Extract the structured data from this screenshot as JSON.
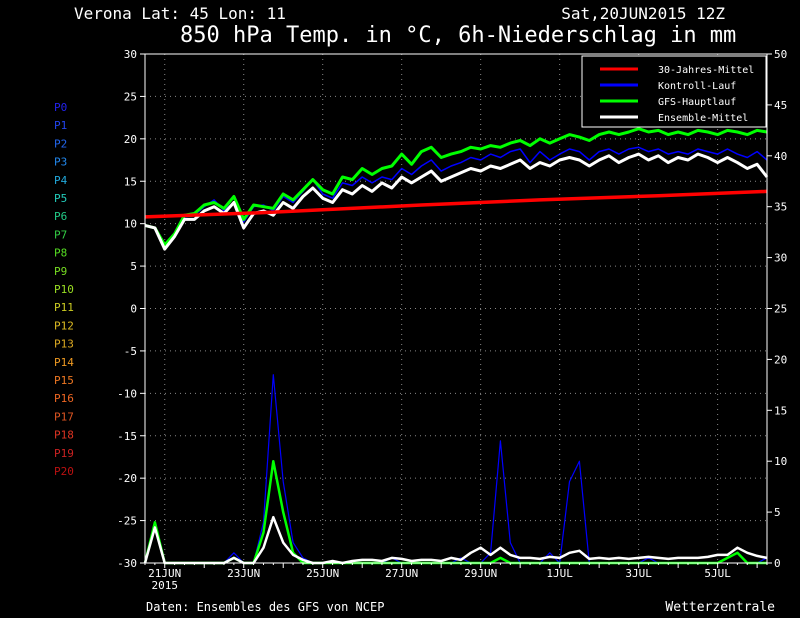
{
  "header": {
    "location": "Verona   Lat: 45 Lon: 11",
    "run": "Sat,20JUN2015 12Z",
    "title": "850 hPa Temp. in °C, 6h-Niederschlag in mm"
  },
  "footer": {
    "source": "Daten: Ensembles des GFS von NCEP",
    "brand": "Wetterzentrale"
  },
  "legend": {
    "items": [
      {
        "label": "30-Jahres-Mittel",
        "color": "#ff0000"
      },
      {
        "label": "Kontroll-Lauf",
        "color": "#0000ff"
      },
      {
        "label": "GFS-Hauptlauf",
        "color": "#00ff00"
      },
      {
        "label": "Ensemble-Mittel",
        "color": "#ffffff"
      }
    ]
  },
  "members": [
    {
      "label": "P0",
      "color": "#2222ee"
    },
    {
      "label": "P1",
      "color": "#2244ee"
    },
    {
      "label": "P2",
      "color": "#2266ee"
    },
    {
      "label": "P3",
      "color": "#2288ee"
    },
    {
      "label": "P4",
      "color": "#22aadd"
    },
    {
      "label": "P5",
      "color": "#22ccbb"
    },
    {
      "label": "P6",
      "color": "#22cc88"
    },
    {
      "label": "P7",
      "color": "#33cc44"
    },
    {
      "label": "P8",
      "color": "#55dd22"
    },
    {
      "label": "P9",
      "color": "#77dd22"
    },
    {
      "label": "P10",
      "color": "#99dd22"
    },
    {
      "label": "P11",
      "color": "#cccc22"
    },
    {
      "label": "P12",
      "color": "#ddbb22"
    },
    {
      "label": "P13",
      "color": "#ddaa22"
    },
    {
      "label": "P14",
      "color": "#ee9922"
    },
    {
      "label": "P15",
      "color": "#ee7722"
    },
    {
      "label": "P16",
      "color": "#ee6622"
    },
    {
      "label": "P17",
      "color": "#dd5522"
    },
    {
      "label": "P18",
      "color": "#dd3322"
    },
    {
      "label": "P19",
      "color": "#cc2222"
    },
    {
      "label": "P20",
      "color": "#bb1111"
    }
  ],
  "chart_data": {
    "type": "line",
    "grid": true,
    "legend_position": "top-right",
    "x_ticks": [
      {
        "day": 0.5,
        "label": "21JUN",
        "sub": "2015"
      },
      {
        "day": 2.5,
        "label": "23JUN"
      },
      {
        "day": 4.5,
        "label": "25JUN"
      },
      {
        "day": 6.5,
        "label": "27JUN"
      },
      {
        "day": 8.5,
        "label": "29JUN"
      },
      {
        "day": 10.5,
        "label": "1JUL"
      },
      {
        "day": 12.5,
        "label": "3JUL"
      },
      {
        "day": 14.5,
        "label": "5JUL"
      }
    ],
    "xlim": [
      0,
      15.75
    ],
    "y_left": {
      "lim": [
        -30,
        30
      ],
      "ticks": [
        30,
        25,
        20,
        15,
        10,
        5,
        0,
        -5,
        -10,
        -15,
        -20,
        -25,
        -30
      ]
    },
    "y_right": {
      "lim": [
        0,
        50
      ],
      "ticks": [
        50,
        45,
        40,
        35,
        30,
        25,
        20,
        15,
        10,
        5,
        0
      ]
    },
    "temperature": {
      "climate_mean": [
        [
          0,
          10.8
        ],
        [
          3,
          11.3
        ],
        [
          7,
          12.2
        ],
        [
          10,
          12.8
        ],
        [
          13,
          13.3
        ],
        [
          15.75,
          13.8
        ]
      ],
      "control": [
        9.8,
        9.5,
        7.2,
        8.5,
        10.8,
        11,
        12,
        12.8,
        11.5,
        13.2,
        10.2,
        12,
        12.2,
        11.5,
        13.2,
        12.5,
        13.8,
        15.2,
        13.5,
        13,
        14.8,
        14.5,
        15.5,
        14.8,
        15.5,
        15.2,
        16.5,
        15.8,
        16.8,
        17.5,
        16.2,
        16.8,
        17.2,
        17.8,
        17.5,
        18.2,
        17.8,
        18.5,
        18.8,
        17.2,
        18.5,
        17.5,
        18.2,
        18.8,
        18.5,
        17.5,
        18.5,
        18.8,
        18.2,
        18.8,
        19,
        18.5,
        18.8,
        18.2,
        18.5,
        18.2,
        18.8,
        18.5,
        18.2,
        18.8,
        18.2,
        17.8,
        18.5,
        17.5
      ],
      "operational": [
        9.8,
        9.5,
        7.5,
        8.8,
        11,
        11.2,
        12.2,
        12.5,
        11.8,
        13.2,
        10.5,
        12.2,
        12,
        11.8,
        13.5,
        12.8,
        14,
        15.2,
        14,
        13.5,
        15.5,
        15.2,
        16.5,
        15.8,
        16.5,
        16.8,
        18.2,
        17,
        18.5,
        19,
        17.8,
        18.2,
        18.5,
        19,
        18.8,
        19.2,
        19,
        19.5,
        19.8,
        19.2,
        20,
        19.5,
        20,
        20.5,
        20.2,
        19.8,
        20.5,
        20.8,
        20.5,
        20.8,
        21.2,
        20.8,
        21,
        20.5,
        20.8,
        20.5,
        21,
        20.8,
        20.5,
        21,
        20.8,
        20.5,
        21,
        20.8
      ],
      "ensemble_mean": [
        9.8,
        9.5,
        7,
        8.5,
        10.5,
        10.5,
        11.5,
        12,
        11.2,
        12.5,
        9.5,
        11.2,
        11.5,
        11,
        12.5,
        11.8,
        13.2,
        14.2,
        13,
        12.5,
        14,
        13.5,
        14.5,
        13.8,
        14.8,
        14.2,
        15.5,
        14.8,
        15.5,
        16.2,
        15,
        15.5,
        16,
        16.5,
        16.2,
        16.8,
        16.5,
        17,
        17.5,
        16.5,
        17.2,
        16.8,
        17.5,
        17.8,
        17.5,
        16.8,
        17.5,
        18,
        17.2,
        17.8,
        18.2,
        17.5,
        18,
        17.2,
        17.8,
        17.5,
        18.2,
        17.8,
        17.2,
        17.8,
        17.2,
        16.5,
        17,
        15.5
      ]
    },
    "precipitation": {
      "control": [
        0,
        3.5,
        0,
        0,
        0,
        0,
        0,
        0,
        0,
        1,
        0,
        0,
        4,
        18.5,
        8,
        2,
        0.5,
        0,
        0,
        0,
        0,
        0,
        0,
        0,
        0,
        0.5,
        0,
        0,
        0,
        0,
        0,
        0,
        0.5,
        0,
        0,
        1,
        12,
        2,
        0,
        0,
        0,
        1,
        0,
        8,
        10,
        0,
        0,
        0,
        0,
        0,
        0,
        0.5,
        0,
        0,
        0,
        0,
        0,
        0,
        0,
        0.5,
        1,
        0,
        0,
        0.5
      ],
      "operational": [
        0,
        4,
        0,
        0,
        0,
        0,
        0,
        0,
        0,
        0.5,
        0,
        0,
        3,
        10,
        5,
        1,
        0,
        0,
        0,
        0,
        0,
        0,
        0,
        0,
        0,
        0,
        0,
        0,
        0,
        0,
        0,
        0,
        0,
        0,
        0,
        0,
        0.5,
        0,
        0,
        0,
        0,
        0,
        0,
        0,
        0,
        0,
        0,
        0,
        0,
        0,
        0,
        0,
        0,
        0,
        0,
        0,
        0,
        0,
        0,
        0.5,
        1,
        0,
        0,
        0
      ],
      "ensemble_mean": [
        0,
        3.5,
        0,
        0,
        0,
        0,
        0,
        0,
        0,
        0.5,
        0,
        0,
        1.5,
        4.5,
        2,
        0.8,
        0.3,
        0,
        0,
        0.2,
        0,
        0.2,
        0.3,
        0.3,
        0.2,
        0.5,
        0.4,
        0.2,
        0.3,
        0.3,
        0.2,
        0.5,
        0.3,
        1,
        1.5,
        0.8,
        1.5,
        0.8,
        0.5,
        0.5,
        0.4,
        0.6,
        0.5,
        1,
        1.2,
        0.4,
        0.5,
        0.4,
        0.5,
        0.4,
        0.5,
        0.6,
        0.5,
        0.4,
        0.5,
        0.5,
        0.5,
        0.6,
        0.8,
        0.8,
        1.5,
        1,
        0.7,
        0.5
      ]
    }
  }
}
